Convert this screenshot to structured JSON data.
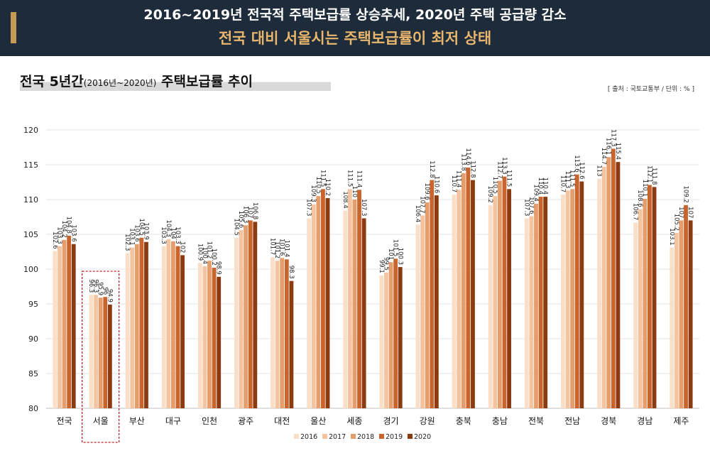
{
  "header": {
    "title_line1": "2016~2019년 전국적 주택보급률 상승추세, 2020년 주택 공급량 감소",
    "title_line2": "전국 대비 서울시는 주택보급률이 최저 상태"
  },
  "section": {
    "title_main": "전국 5년간",
    "title_sub": "(2016년~2020년)",
    "title_tail": " 주택보급률 추이",
    "source": "[ 출처 : 국토교통부 / 단위 : % ]"
  },
  "chart_data": {
    "type": "bar",
    "title": "",
    "xlabel": "",
    "ylabel": "",
    "ylim": [
      80,
      120
    ],
    "yticks": [
      80,
      85,
      90,
      95,
      100,
      105,
      110,
      115,
      120
    ],
    "grid": true,
    "legend_position": "bottom",
    "highlighted_category": "서울",
    "categories": [
      "전국",
      "서울",
      "부산",
      "대구",
      "인천",
      "광주",
      "대전",
      "울산",
      "세종",
      "경기",
      "강원",
      "충북",
      "충남",
      "전북",
      "전남",
      "경북",
      "경남",
      "제주"
    ],
    "series": [
      {
        "name": "2016",
        "color": "#f9dfc8",
        "values": [
          102.6,
          96.3,
          102.3,
          103.3,
          100.9,
          104.5,
          101.7,
          107.3,
          108.4,
          99.1,
          106.4,
          110.7,
          109.2,
          107.3,
          110.7,
          113,
          106.7,
          103.1
        ]
      },
      {
        "name": "2017",
        "color": "#f4c4a0",
        "values": [
          103.3,
          96.3,
          103.1,
          104.3,
          100.4,
          105.6,
          101.2,
          109.3,
          111.5,
          99.5,
          107.7,
          111.4,
          110.5,
          107.6,
          111.3,
          114.7,
          108.6,
          105.2
        ]
      },
      {
        "name": "2018",
        "color": "#e59d6c",
        "values": [
          104.2,
          95.9,
          103.6,
          104,
          101.2,
          106.3,
          101.6,
          110.5,
          110,
          101,
          109.6,
          113.8,
          112.7,
          109.4,
          111.5,
          116.1,
          110.1,
          107
        ]
      },
      {
        "name": "2019",
        "color": "#c9652c",
        "values": [
          104.8,
          96,
          104.5,
          103.3,
          100.2,
          107,
          101.4,
          111.5,
          111.4,
          101.5,
          112.8,
          114.6,
          113.3,
          110.4,
          113.6,
          117.3,
          112.1,
          109.2
        ]
      },
      {
        "name": "2020",
        "color": "#8c3a10",
        "values": [
          103.6,
          94.9,
          103.9,
          102,
          98.9,
          106.8,
          98.3,
          110.2,
          107.3,
          100.3,
          110.6,
          112.8,
          111.5,
          110.4,
          112.6,
          115.4,
          111.8,
          107
        ]
      }
    ]
  }
}
